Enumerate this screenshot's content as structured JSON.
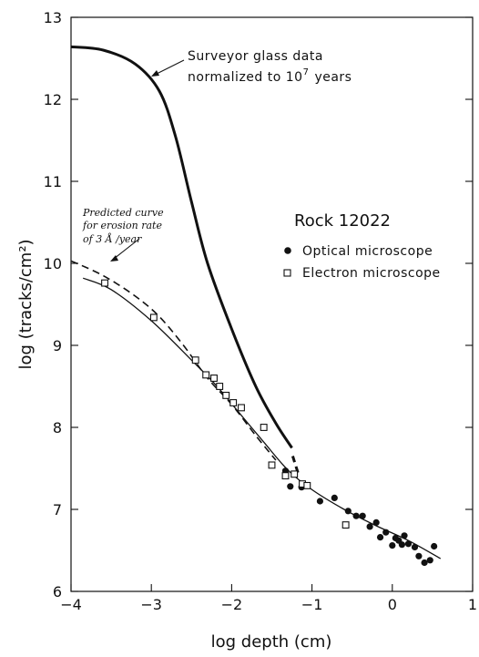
{
  "chart_data": {
    "type": "scatter",
    "title": "",
    "xlabel": "log depth (cm)",
    "ylabel": "log (tracks/cm²)",
    "xlim": [
      -4,
      1
    ],
    "ylim": [
      6,
      13
    ],
    "x_ticks": [
      "−4",
      "−3",
      "−2",
      "−1",
      "0",
      "1"
    ],
    "y_ticks": [
      "6",
      "7",
      "8",
      "9",
      "10",
      "11",
      "12",
      "13"
    ],
    "legend": {
      "title": "Rock 12022",
      "entries": [
        "Optical microscope",
        "Electron microscope"
      ]
    },
    "annotations": {
      "surveyor_line1": "Surveyor glass data",
      "surveyor_line2": "normalized to 10",
      "surveyor_exponent": "7",
      "surveyor_line2_suffix": "years",
      "predicted_line1": "Predicted curve",
      "predicted_line2": "for erosion rate",
      "predicted_line3": "of 3 Å /year"
    },
    "series": [
      {
        "name": "Optical microscope",
        "marker": "filled-circle",
        "points": [
          [
            -1.33,
            7.47
          ],
          [
            -1.27,
            7.28
          ],
          [
            -1.13,
            7.27
          ],
          [
            -0.9,
            7.1
          ],
          [
            -0.72,
            7.14
          ],
          [
            -0.55,
            6.98
          ],
          [
            -0.45,
            6.92
          ],
          [
            -0.37,
            6.92
          ],
          [
            -0.28,
            6.79
          ],
          [
            -0.2,
            6.84
          ],
          [
            -0.15,
            6.66
          ],
          [
            -0.08,
            6.72
          ],
          [
            0.0,
            6.56
          ],
          [
            0.04,
            6.65
          ],
          [
            0.08,
            6.62
          ],
          [
            0.12,
            6.57
          ],
          [
            0.15,
            6.68
          ],
          [
            0.2,
            6.58
          ],
          [
            0.28,
            6.54
          ],
          [
            0.33,
            6.43
          ],
          [
            0.4,
            6.35
          ],
          [
            0.47,
            6.38
          ],
          [
            0.52,
            6.55
          ]
        ]
      },
      {
        "name": "Electron microscope",
        "marker": "open-square",
        "points": [
          [
            -3.58,
            9.76
          ],
          [
            -2.97,
            9.34
          ],
          [
            -2.45,
            8.82
          ],
          [
            -2.32,
            8.64
          ],
          [
            -2.22,
            8.6
          ],
          [
            -2.15,
            8.5
          ],
          [
            -2.07,
            8.39
          ],
          [
            -1.98,
            8.3
          ],
          [
            -1.88,
            8.24
          ],
          [
            -1.6,
            8.0
          ],
          [
            -1.5,
            7.54
          ],
          [
            -1.33,
            7.41
          ],
          [
            -1.22,
            7.43
          ],
          [
            -1.12,
            7.31
          ],
          [
            -1.06,
            7.29
          ],
          [
            -0.58,
            6.81
          ]
        ]
      },
      {
        "name": "Surveyor glass data",
        "style": "thick-solid",
        "points": [
          [
            -4.0,
            12.64
          ],
          [
            -3.6,
            12.6
          ],
          [
            -3.2,
            12.43
          ],
          [
            -2.9,
            12.1
          ],
          [
            -2.7,
            11.55
          ],
          [
            -2.5,
            10.75
          ],
          [
            -2.3,
            10.0
          ],
          [
            -2.0,
            9.2
          ],
          [
            -1.7,
            8.5
          ],
          [
            -1.45,
            8.05
          ],
          [
            -1.25,
            7.75
          ]
        ]
      },
      {
        "name": "Surveyor glass data (extension)",
        "style": "thick-dash",
        "points": [
          [
            -1.24,
            7.65
          ],
          [
            -1.16,
            7.4
          ]
        ]
      },
      {
        "name": "Predicted curve",
        "style": "dashed",
        "points": [
          [
            -4.0,
            10.03
          ],
          [
            -3.6,
            9.85
          ],
          [
            -3.2,
            9.6
          ],
          [
            -2.9,
            9.35
          ],
          [
            -2.6,
            9.0
          ],
          [
            -2.3,
            8.6
          ],
          [
            -2.0,
            8.28
          ],
          [
            -1.7,
            7.9
          ],
          [
            -1.45,
            7.6
          ]
        ]
      },
      {
        "name": "Fit curve",
        "style": "thin-solid",
        "points": [
          [
            -3.85,
            9.82
          ],
          [
            -3.5,
            9.68
          ],
          [
            -3.0,
            9.3
          ],
          [
            -2.5,
            8.82
          ],
          [
            -2.2,
            8.52
          ],
          [
            -1.9,
            8.17
          ],
          [
            -1.6,
            7.82
          ],
          [
            -1.3,
            7.48
          ],
          [
            -1.0,
            7.24
          ],
          [
            -0.6,
            7.0
          ],
          [
            -0.2,
            6.8
          ],
          [
            0.2,
            6.62
          ],
          [
            0.6,
            6.4
          ]
        ]
      }
    ]
  }
}
